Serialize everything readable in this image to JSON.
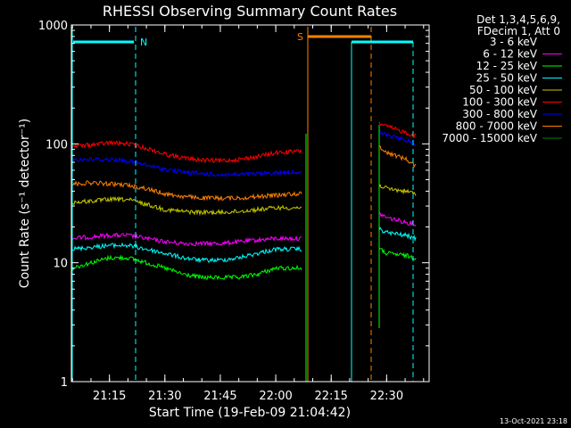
{
  "chart_data": {
    "type": "line",
    "title": "RHESSI Observing Summary Count Rates",
    "xlabel": "Start Time (19-Feb-09 21:04:42)",
    "ylabel": "Count Rate (s⁻¹ detector⁻¹)",
    "yscale": "log",
    "ylim": [
      1,
      1000
    ],
    "xlim": [
      "21:04:42",
      "22:41:30"
    ],
    "x_ticks": [
      "21:15",
      "21:30",
      "21:45",
      "22:00",
      "22:15",
      "22:30"
    ],
    "y_ticks": [
      "1",
      "10",
      "100",
      "1000"
    ],
    "legend_header": [
      "Det 1,3,4,5,6,9,",
      "FDecim 1, Att 0"
    ],
    "legend_position": "right",
    "series": [
      {
        "name": "3 - 6 keV",
        "color": "#000000",
        "segments": [
          {
            "x": [
              "21:04:42",
              "21:10",
              "21:15",
              "21:20",
              "21:25",
              "21:30",
              "21:35",
              "21:40",
              "21:45",
              "21:50",
              "21:55",
              "22:00",
              "22:05",
              "22:07"
            ],
            "y": [
              7.5,
              8,
              9,
              9,
              8.5,
              8,
              7,
              7,
              7,
              7,
              7.5,
              8,
              7.5,
              8
            ]
          },
          {
            "x": [
              "22:28",
              "22:30",
              "22:35",
              "22:38"
            ],
            "y": [
              17,
              16,
              15,
              14
            ]
          }
        ]
      },
      {
        "name": "6 - 12 keV",
        "color": "#ff00ff",
        "segments": [
          {
            "x": [
              "21:04:42",
              "21:10",
              "21:15",
              "21:20",
              "21:25",
              "21:30",
              "21:35",
              "21:40",
              "21:45",
              "21:50",
              "21:55",
              "22:00",
              "22:05",
              "22:07"
            ],
            "y": [
              16,
              16.5,
              17,
              17,
              16,
              15,
              14.5,
              14.5,
              14.5,
              15,
              15.5,
              16,
              16,
              16
            ]
          },
          {
            "x": [
              "22:28",
              "22:30",
              "22:35",
              "22:38"
            ],
            "y": [
              26,
              24,
              22,
              21
            ]
          }
        ]
      },
      {
        "name": "12 - 25 keV",
        "color": "#00ff00",
        "segments": [
          {
            "x": [
              "21:04:42",
              "21:10",
              "21:15",
              "21:20",
              "21:25",
              "21:30",
              "21:35",
              "21:40",
              "21:45",
              "21:50",
              "21:55",
              "22:00",
              "22:05",
              "22:07"
            ],
            "y": [
              9,
              10,
              11,
              11,
              10,
              9,
              8,
              7.5,
              7.5,
              7.5,
              8,
              9,
              9,
              9
            ]
          },
          {
            "x": [
              "22:28",
              "22:30",
              "22:35",
              "22:38"
            ],
            "y": [
              13,
              12,
              11.5,
              11
            ]
          }
        ]
      },
      {
        "name": "25 - 50 keV",
        "color": "#00ffff",
        "segments": [
          {
            "x": [
              "21:04:42",
              "21:10",
              "21:15",
              "21:20",
              "21:25",
              "21:30",
              "21:35",
              "21:40",
              "21:45",
              "21:50",
              "21:55",
              "22:00",
              "22:05",
              "22:07"
            ],
            "y": [
              13,
              13.5,
              14,
              14,
              13,
              12,
              11,
              10.5,
              10.5,
              11,
              12,
              13,
              13,
              13
            ]
          },
          {
            "x": [
              "22:28",
              "22:30",
              "22:35",
              "22:38"
            ],
            "y": [
              19,
              18,
              17,
              16
            ]
          }
        ]
      },
      {
        "name": "50 - 100 keV",
        "color": "#c8c800",
        "segments": [
          {
            "x": [
              "21:04:42",
              "21:10",
              "21:15",
              "21:20",
              "21:25",
              "21:30",
              "21:35",
              "21:40",
              "21:45",
              "21:50",
              "21:55",
              "22:00",
              "22:05",
              "22:07"
            ],
            "y": [
              32,
              33,
              34,
              34,
              31,
              28,
              27,
              26.5,
              26.5,
              27,
              28,
              29,
              29,
              29
            ]
          },
          {
            "x": [
              "22:28",
              "22:30",
              "22:35",
              "22:38"
            ],
            "y": [
              45,
              42,
              40,
              38
            ]
          }
        ]
      },
      {
        "name": "100 - 300 keV",
        "color": "#ff0000",
        "segments": [
          {
            "x": [
              "21:04:42",
              "21:10",
              "21:15",
              "21:20",
              "21:25",
              "21:30",
              "21:35",
              "21:40",
              "21:45",
              "21:50",
              "21:55",
              "22:00",
              "22:05",
              "22:07"
            ],
            "y": [
              95,
              98,
              102,
              100,
              92,
              82,
              76,
              73,
              72,
              74,
              78,
              84,
              86,
              87
            ]
          },
          {
            "x": [
              "22:28",
              "22:30",
              "22:35",
              "22:38"
            ],
            "y": [
              150,
              140,
              125,
              115
            ]
          }
        ]
      },
      {
        "name": "300 - 800 keV",
        "color": "#0000ff",
        "segments": [
          {
            "x": [
              "21:04:42",
              "21:10",
              "21:15",
              "21:20",
              "21:25",
              "21:30",
              "21:35",
              "21:40",
              "21:45",
              "21:50",
              "21:55",
              "22:00",
              "22:05",
              "22:07"
            ],
            "y": [
              74,
              74,
              74,
              72,
              66,
              61,
              58,
              56,
              55,
              55,
              56,
              57,
              58,
              58
            ]
          },
          {
            "x": [
              "22:28",
              "22:30",
              "22:35",
              "22:38"
            ],
            "y": [
              125,
              118,
              108,
              100
            ]
          }
        ]
      },
      {
        "name": "800 - 7000 keV",
        "color": "#ff8000",
        "segments": [
          {
            "x": [
              "21:04:42",
              "21:10",
              "21:15",
              "21:20",
              "21:25",
              "21:30",
              "21:35",
              "21:40",
              "21:45",
              "21:50",
              "21:55",
              "22:00",
              "22:05",
              "22:07"
            ],
            "y": [
              46,
              47,
              46,
              45,
              42,
              38,
              36,
              35,
              35,
              35,
              36,
              37,
              38,
              38
            ]
          },
          {
            "x": [
              "22:28",
              "22:30",
              "22:35",
              "22:38"
            ],
            "y": [
              95,
              85,
              75,
              65
            ]
          }
        ]
      },
      {
        "name": "7000 - 15000 keV",
        "color": "#008000",
        "segments": []
      }
    ],
    "annotations": [
      {
        "text": "N",
        "color": "#00ffff"
      },
      {
        "text": "S",
        "color": "#ff8000"
      }
    ],
    "footer": "13-Oct-2021 23:18"
  }
}
